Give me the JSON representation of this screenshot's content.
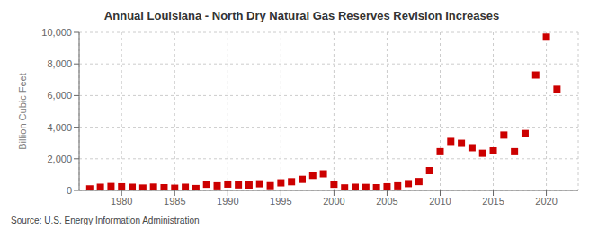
{
  "chart_data": {
    "type": "scatter",
    "title": "Annual Louisiana - North Dry Natural Gas Reserves Revision Increases",
    "ylabel": "Billion Cubic Feet",
    "annotations": [
      "Source: U.S. Energy Information Administration"
    ],
    "x": [
      1977,
      1978,
      1979,
      1980,
      1981,
      1982,
      1983,
      1984,
      1985,
      1986,
      1987,
      1988,
      1989,
      1990,
      1991,
      1992,
      1993,
      1994,
      1995,
      1996,
      1997,
      1998,
      1999,
      2000,
      2001,
      2002,
      2003,
      2004,
      2005,
      2006,
      2007,
      2008,
      2009,
      2010,
      2011,
      2012,
      2013,
      2014,
      2015,
      2016,
      2017,
      2018,
      2019,
      2020,
      2021
    ],
    "values": [
      100,
      200,
      250,
      230,
      200,
      150,
      210,
      170,
      140,
      200,
      120,
      390,
      290,
      400,
      350,
      340,
      420,
      300,
      480,
      550,
      700,
      950,
      1050,
      390,
      160,
      200,
      190,
      170,
      230,
      290,
      430,
      560,
      1250,
      2450,
      3100,
      2980,
      2700,
      2350,
      2500,
      3500,
      2450,
      3600,
      7300,
      9700,
      6400
    ],
    "color": "#cc0000",
    "marker": "square",
    "xlim": [
      1976,
      2023
    ],
    "xticks": [
      1980,
      1985,
      1990,
      1995,
      2000,
      2005,
      2010,
      2015,
      2020
    ],
    "ylim": [
      0,
      10000
    ],
    "yticks": [
      0,
      {
        "value": 2000,
        "label": "2,000"
      },
      {
        "value": 4000,
        "label": "4,000"
      },
      {
        "value": 6000,
        "label": "6,000"
      },
      {
        "value": 8000,
        "label": "8,000"
      },
      {
        "value": 10000,
        "label": "10,000"
      }
    ],
    "grid": true
  }
}
